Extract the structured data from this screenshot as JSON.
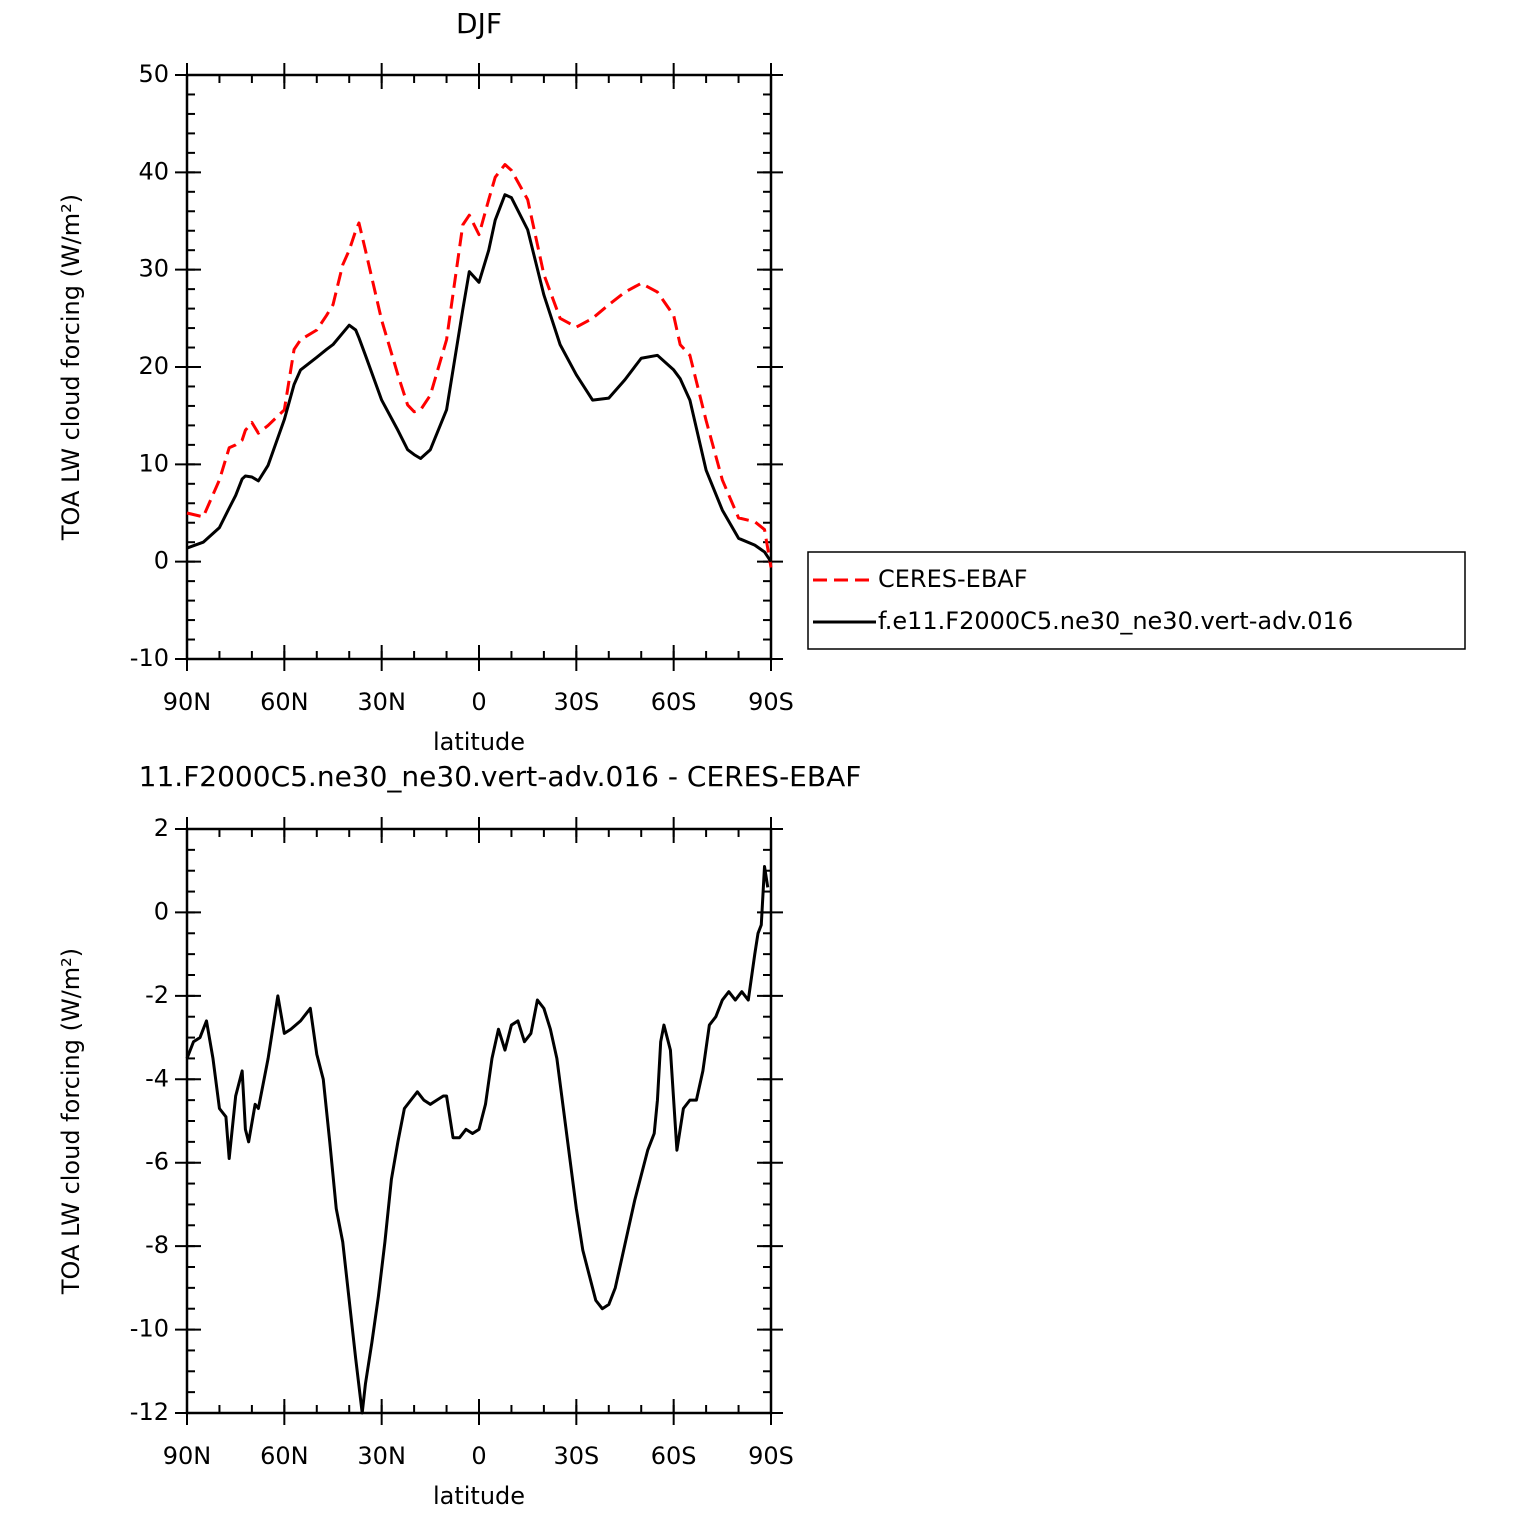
{
  "chart_data": [
    {
      "type": "line",
      "title": "DJF",
      "x_label": "latitude",
      "y_label": "TOA LW cloud forcing (W/m²)",
      "xlim": [
        90,
        -90
      ],
      "xticks": [
        {
          "value": 90,
          "label": "90N"
        },
        {
          "value": 60,
          "label": "60N"
        },
        {
          "value": 30,
          "label": "30N"
        },
        0,
        {
          "value": -30,
          "label": "30S"
        },
        {
          "value": -60,
          "label": "60S"
        },
        {
          "value": -90,
          "label": "90S"
        }
      ],
      "ylim": [
        -10,
        50
      ],
      "yticks": [
        -10,
        0,
        10,
        20,
        30,
        40,
        50
      ],
      "x_minor_step": 10,
      "y_minor_step": 2,
      "legend": "outside-right",
      "x": [
        90,
        85,
        80,
        77,
        75,
        73,
        72,
        70,
        68,
        65,
        60,
        57,
        55,
        50,
        47,
        45,
        42,
        40,
        38,
        37,
        35,
        30,
        25,
        22,
        20,
        18,
        15,
        10,
        5,
        3,
        0,
        -3,
        -5,
        -8,
        -10,
        -15,
        -20,
        -25,
        -30,
        -35,
        -40,
        -45,
        -50,
        -55,
        -60,
        -62,
        -65,
        -70,
        -75,
        -80,
        -85,
        -88,
        -90
      ],
      "series": [
        {
          "name": "CERES-EBAF",
          "color": "#ff0000",
          "dash": true,
          "values": [
            5.0,
            4.6,
            8.4,
            11.7,
            12.0,
            12.5,
            13.5,
            14.3,
            13.2,
            14.0,
            15.6,
            21.8,
            22.8,
            23.8,
            25.3,
            26.4,
            30.5,
            32.0,
            34.0,
            34.8,
            32.0,
            24.8,
            19.2,
            16.1,
            15.4,
            15.6,
            17.1,
            22.8,
            34.6,
            35.6,
            33.6,
            37.2,
            39.5,
            40.8,
            40.2,
            37.2,
            29.5,
            25.0,
            24.1,
            25.0,
            26.4,
            27.7,
            28.6,
            27.7,
            25.3,
            22.3,
            21.2,
            14.5,
            8.4,
            4.5,
            4.1,
            3.3,
            -0.6
          ]
        },
        {
          "name": "f.e11.F2000C5.ne30_ne30.vert-adv.016",
          "color": "#000000",
          "dash": false,
          "values": [
            1.4,
            2.0,
            3.5,
            5.5,
            6.8,
            8.5,
            8.8,
            8.7,
            8.3,
            9.9,
            14.6,
            18.2,
            19.7,
            21.0,
            21.8,
            22.3,
            23.5,
            24.3,
            23.8,
            23.0,
            21.2,
            16.6,
            13.5,
            11.5,
            11.0,
            10.6,
            11.5,
            15.6,
            25.9,
            29.8,
            28.7,
            32.0,
            35.1,
            37.7,
            37.4,
            34.1,
            27.4,
            22.3,
            19.2,
            16.6,
            16.8,
            18.7,
            20.9,
            21.2,
            19.7,
            18.8,
            16.6,
            9.4,
            5.3,
            2.4,
            1.7,
            1.0,
            0.0
          ]
        }
      ]
    },
    {
      "type": "line",
      "title": "11.F2000C5.ne30_ne30.vert-adv.016 - CERES-EBAF",
      "x_label": "latitude",
      "y_label": "TOA LW cloud forcing (W/m²)",
      "xlim": [
        90,
        -90
      ],
      "xticks": [
        {
          "value": 90,
          "label": "90N"
        },
        {
          "value": 60,
          "label": "60N"
        },
        {
          "value": 30,
          "label": "30N"
        },
        0,
        {
          "value": -30,
          "label": "30S"
        },
        {
          "value": -60,
          "label": "60S"
        },
        {
          "value": -90,
          "label": "90S"
        }
      ],
      "ylim": [
        -12,
        2
      ],
      "yticks": [
        -12,
        -10,
        -8,
        -6,
        -4,
        -2,
        0,
        2
      ],
      "x_minor_step": 10,
      "y_minor_step": 0.5,
      "x": [
        90,
        88,
        86,
        84,
        82,
        80,
        78,
        77,
        75,
        73,
        72,
        71,
        69,
        68,
        65,
        63,
        62,
        60,
        58,
        55,
        53,
        52,
        50,
        48,
        46,
        44,
        42,
        40,
        38,
        36,
        35,
        33,
        31,
        29,
        27,
        25,
        23,
        21,
        19,
        17,
        15,
        13,
        11,
        10,
        8,
        6,
        4,
        2,
        0,
        -2,
        -4,
        -6,
        -8,
        -10,
        -12,
        -14,
        -16,
        -18,
        -20,
        -22,
        -24,
        -26,
        -28,
        -30,
        -32,
        -34,
        -36,
        -38,
        -40,
        -42,
        -44,
        -46,
        -48,
        -50,
        -52,
        -54,
        -55,
        -56,
        -57,
        -59,
        -61,
        -63,
        -65,
        -67,
        -69,
        -71,
        -73,
        -75,
        -77,
        -79,
        -81,
        -83,
        -85,
        -86,
        -87,
        -88,
        -89
      ],
      "series": [
        {
          "color": "#000000",
          "dash": false,
          "values": [
            -3.5,
            -3.1,
            -3.0,
            -2.6,
            -3.5,
            -4.7,
            -4.9,
            -5.9,
            -4.4,
            -3.8,
            -5.2,
            -5.5,
            -4.6,
            -4.7,
            -3.5,
            -2.5,
            -2.0,
            -2.9,
            -2.8,
            -2.6,
            -2.4,
            -2.3,
            -3.4,
            -4.0,
            -5.5,
            -7.1,
            -7.9,
            -9.3,
            -10.7,
            -12.0,
            -11.3,
            -10.3,
            -9.2,
            -7.9,
            -6.4,
            -5.5,
            -4.7,
            -4.5,
            -4.3,
            -4.5,
            -4.6,
            -4.5,
            -4.4,
            -4.4,
            -5.4,
            -5.4,
            -5.2,
            -5.3,
            -5.2,
            -4.6,
            -3.5,
            -2.8,
            -3.3,
            -2.7,
            -2.6,
            -3.1,
            -2.9,
            -2.1,
            -2.3,
            -2.8,
            -3.5,
            -4.7,
            -5.9,
            -7.1,
            -8.1,
            -8.7,
            -9.3,
            -9.5,
            -9.4,
            -9.0,
            -8.3,
            -7.6,
            -6.9,
            -6.3,
            -5.7,
            -5.3,
            -4.5,
            -3.1,
            -2.7,
            -3.3,
            -5.7,
            -4.7,
            -4.5,
            -4.5,
            -3.8,
            -2.7,
            -2.5,
            -2.1,
            -1.9,
            -2.1,
            -1.9,
            -2.1,
            -1.0,
            -0.5,
            -0.3,
            1.1,
            0.6
          ]
        }
      ]
    }
  ]
}
